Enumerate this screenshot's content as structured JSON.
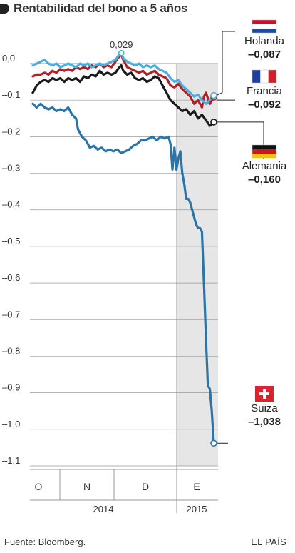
{
  "title": "Rentabilidad del bono a 5 años",
  "source": "Fuente: Bloomberg.",
  "brand": "EL PAÍS",
  "chart_data": {
    "type": "line",
    "ylim": [
      -1.1,
      0.0
    ],
    "yticks": [
      "0,0",
      "–0,1",
      "–0,2",
      "–0,3",
      "–0,4",
      "–0,5",
      "–0,6",
      "–0,7",
      "–0,8",
      "–0,9",
      "–1,0",
      "–1,1"
    ],
    "months": [
      "O",
      "N",
      "D",
      "E"
    ],
    "years": [
      "2014",
      "2015"
    ],
    "grid": true,
    "peak_annotation": {
      "label": "0,029",
      "x": 45,
      "y": 0.029
    },
    "series": [
      {
        "name": "Suiza",
        "value_label": "–1,038",
        "color": "#2a74a8",
        "flag": "switzerland-flag",
        "points": [
          [
            0,
            -0.11
          ],
          [
            2,
            -0.12
          ],
          [
            4,
            -0.11
          ],
          [
            6,
            -0.12
          ],
          [
            8,
            -0.125
          ],
          [
            10,
            -0.12
          ],
          [
            12,
            -0.13
          ],
          [
            14,
            -0.125
          ],
          [
            16,
            -0.13
          ],
          [
            18,
            -0.12
          ],
          [
            20,
            -0.14
          ],
          [
            22,
            -0.15
          ],
          [
            23,
            -0.18
          ],
          [
            25,
            -0.2
          ],
          [
            27,
            -0.21
          ],
          [
            29,
            -0.23
          ],
          [
            31,
            -0.225
          ],
          [
            33,
            -0.235
          ],
          [
            35,
            -0.23
          ],
          [
            37,
            -0.24
          ],
          [
            39,
            -0.235
          ],
          [
            41,
            -0.24
          ],
          [
            43,
            -0.235
          ],
          [
            45,
            -0.245
          ],
          [
            47,
            -0.24
          ],
          [
            49,
            -0.235
          ],
          [
            51,
            -0.225
          ],
          [
            53,
            -0.22
          ],
          [
            55,
            -0.21
          ],
          [
            57,
            -0.21
          ],
          [
            59,
            -0.205
          ],
          [
            61,
            -0.2
          ],
          [
            63,
            -0.21
          ],
          [
            65,
            -0.2
          ],
          [
            67,
            -0.205
          ],
          [
            69,
            -0.2
          ],
          [
            70,
            -0.22
          ],
          [
            71,
            -0.29
          ],
          [
            72,
            -0.23
          ],
          [
            73,
            -0.29
          ],
          [
            74,
            -0.26
          ],
          [
            75,
            -0.24
          ],
          [
            76,
            -0.3
          ],
          [
            77,
            -0.33
          ],
          [
            78,
            -0.37
          ],
          [
            79,
            -0.37
          ],
          [
            80,
            -0.38
          ],
          [
            81,
            -0.4
          ],
          [
            82,
            -0.42
          ],
          [
            83,
            -0.44
          ],
          [
            84,
            -0.45
          ],
          [
            85,
            -0.45
          ],
          [
            86,
            -0.46
          ],
          [
            87,
            -0.6
          ],
          [
            88,
            -0.75
          ],
          [
            89,
            -0.88
          ],
          [
            90,
            -0.89
          ],
          [
            91,
            -0.95
          ],
          [
            92,
            -1.038
          ]
        ]
      },
      {
        "name": "Alemania",
        "value_label": "–0,160",
        "color": "#1a1a1a",
        "flag": "germany-flag",
        "points": [
          [
            0,
            -0.08
          ],
          [
            2,
            -0.06
          ],
          [
            4,
            -0.05
          ],
          [
            6,
            -0.045
          ],
          [
            8,
            -0.05
          ],
          [
            10,
            -0.04
          ],
          [
            12,
            -0.045
          ],
          [
            14,
            -0.04
          ],
          [
            16,
            -0.05
          ],
          [
            18,
            -0.04
          ],
          [
            20,
            -0.045
          ],
          [
            22,
            -0.04
          ],
          [
            24,
            -0.05
          ],
          [
            26,
            -0.035
          ],
          [
            28,
            -0.04
          ],
          [
            30,
            -0.03
          ],
          [
            32,
            -0.035
          ],
          [
            34,
            -0.02
          ],
          [
            36,
            -0.03
          ],
          [
            38,
            -0.025
          ],
          [
            40,
            -0.03
          ],
          [
            42,
            -0.025
          ],
          [
            44,
            -0.01
          ],
          [
            45,
            -0.005
          ],
          [
            46,
            -0.02
          ],
          [
            48,
            -0.03
          ],
          [
            50,
            -0.025
          ],
          [
            52,
            -0.04
          ],
          [
            54,
            -0.045
          ],
          [
            56,
            -0.04
          ],
          [
            58,
            -0.05
          ],
          [
            60,
            -0.045
          ],
          [
            62,
            -0.035
          ],
          [
            64,
            -0.04
          ],
          [
            66,
            -0.06
          ],
          [
            68,
            -0.08
          ],
          [
            70,
            -0.1
          ],
          [
            72,
            -0.11
          ],
          [
            74,
            -0.12
          ],
          [
            76,
            -0.13
          ],
          [
            78,
            -0.125
          ],
          [
            80,
            -0.14
          ],
          [
            82,
            -0.13
          ],
          [
            84,
            -0.15
          ],
          [
            86,
            -0.14
          ],
          [
            88,
            -0.155
          ],
          [
            90,
            -0.17
          ],
          [
            92,
            -0.16
          ]
        ]
      },
      {
        "name": "Francia",
        "value_label": "–0,092",
        "color": "#b21f24",
        "flag": "france-flag",
        "points": [
          [
            0,
            -0.035
          ],
          [
            2,
            -0.03
          ],
          [
            4,
            -0.03
          ],
          [
            6,
            -0.025
          ],
          [
            8,
            -0.03
          ],
          [
            10,
            -0.02
          ],
          [
            12,
            -0.025
          ],
          [
            14,
            -0.015
          ],
          [
            16,
            -0.02
          ],
          [
            18,
            -0.015
          ],
          [
            20,
            -0.02
          ],
          [
            22,
            -0.01
          ],
          [
            24,
            -0.015
          ],
          [
            26,
            -0.01
          ],
          [
            28,
            -0.015
          ],
          [
            30,
            -0.005
          ],
          [
            32,
            -0.01
          ],
          [
            34,
            0.0
          ],
          [
            36,
            -0.01
          ],
          [
            38,
            -0.005
          ],
          [
            40,
            -0.01
          ],
          [
            42,
            0.005
          ],
          [
            44,
            0.02
          ],
          [
            45,
            0.025
          ],
          [
            46,
            0.01
          ],
          [
            48,
            -0.01
          ],
          [
            50,
            -0.015
          ],
          [
            52,
            -0.02
          ],
          [
            54,
            -0.025
          ],
          [
            56,
            -0.02
          ],
          [
            58,
            -0.03
          ],
          [
            60,
            -0.025
          ],
          [
            62,
            -0.02
          ],
          [
            64,
            -0.03
          ],
          [
            66,
            -0.035
          ],
          [
            68,
            -0.04
          ],
          [
            70,
            -0.06
          ],
          [
            72,
            -0.065
          ],
          [
            74,
            -0.055
          ],
          [
            76,
            -0.07
          ],
          [
            78,
            -0.08
          ],
          [
            80,
            -0.09
          ],
          [
            82,
            -0.11
          ],
          [
            84,
            -0.1
          ],
          [
            86,
            -0.12
          ],
          [
            87,
            -0.09
          ],
          [
            88,
            -0.08
          ],
          [
            90,
            -0.11
          ],
          [
            92,
            -0.092
          ]
        ]
      },
      {
        "name": "Holanda",
        "value_label": "–0,087",
        "color": "#4aaee0",
        "flag": "netherlands-flag",
        "points": [
          [
            0,
            -0.005
          ],
          [
            2,
            0.0
          ],
          [
            4,
            0.005
          ],
          [
            6,
            0.01
          ],
          [
            8,
            0.0
          ],
          [
            10,
            -0.005
          ],
          [
            12,
            0.0
          ],
          [
            14,
            -0.01
          ],
          [
            16,
            -0.005
          ],
          [
            18,
            0.0
          ],
          [
            20,
            -0.005
          ],
          [
            22,
            -0.01
          ],
          [
            24,
            0.0
          ],
          [
            26,
            -0.005
          ],
          [
            28,
            0.0
          ],
          [
            30,
            -0.01
          ],
          [
            32,
            -0.005
          ],
          [
            34,
            0.0
          ],
          [
            36,
            -0.005
          ],
          [
            38,
            0.0
          ],
          [
            40,
            0.005
          ],
          [
            42,
            0.01
          ],
          [
            44,
            0.025
          ],
          [
            45,
            0.029
          ],
          [
            46,
            0.015
          ],
          [
            48,
            0.005
          ],
          [
            50,
            0.0
          ],
          [
            52,
            -0.005
          ],
          [
            54,
            0.0
          ],
          [
            56,
            -0.01
          ],
          [
            58,
            -0.005
          ],
          [
            60,
            -0.01
          ],
          [
            62,
            -0.005
          ],
          [
            64,
            -0.015
          ],
          [
            66,
            -0.02
          ],
          [
            68,
            -0.025
          ],
          [
            70,
            -0.04
          ],
          [
            72,
            -0.05
          ],
          [
            74,
            -0.045
          ],
          [
            76,
            -0.06
          ],
          [
            78,
            -0.07
          ],
          [
            80,
            -0.08
          ],
          [
            82,
            -0.09
          ],
          [
            84,
            -0.085
          ],
          [
            86,
            -0.1
          ],
          [
            88,
            -0.11
          ],
          [
            90,
            -0.1
          ],
          [
            92,
            -0.087
          ]
        ]
      }
    ]
  }
}
